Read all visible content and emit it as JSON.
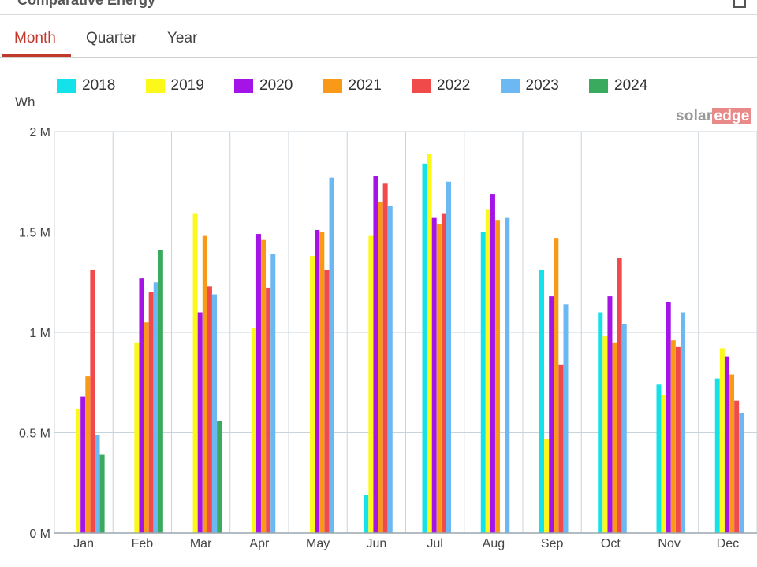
{
  "header": {
    "title": "Comparative Energy"
  },
  "tabs": [
    {
      "label": "Month",
      "active": true
    },
    {
      "label": "Quarter",
      "active": false
    },
    {
      "label": "Year",
      "active": false
    }
  ],
  "brand": {
    "part1": "solar",
    "part2": "edge"
  },
  "colors": {
    "active_tab": "#c0392b",
    "grid": "#c8d4dc"
  },
  "chart_data": {
    "type": "bar",
    "title": "",
    "xlabel": "",
    "ylabel": "Wh",
    "ylim": [
      0,
      2000000
    ],
    "y_ticks": [
      {
        "value": 0,
        "label": "0 M"
      },
      {
        "value": 500000,
        "label": "0.5 M"
      },
      {
        "value": 1000000,
        "label": "1 M"
      },
      {
        "value": 1500000,
        "label": "1.5 M"
      },
      {
        "value": 2000000,
        "label": "2 M"
      }
    ],
    "grid": true,
    "legend_position": "top",
    "categories": [
      "Jan",
      "Feb",
      "Mar",
      "Apr",
      "May",
      "Jun",
      "Jul",
      "Aug",
      "Sep",
      "Oct",
      "Nov",
      "Dec"
    ],
    "series": [
      {
        "name": "2018",
        "color": "#14e2ea",
        "values": [
          null,
          null,
          null,
          null,
          null,
          190000,
          1840000,
          1500000,
          1310000,
          1100000,
          740000,
          770000
        ]
      },
      {
        "name": "2019",
        "color": "#fbf81a",
        "values": [
          620000,
          950000,
          1590000,
          1020000,
          1380000,
          1480000,
          1890000,
          1610000,
          470000,
          980000,
          690000,
          920000
        ]
      },
      {
        "name": "2020",
        "color": "#a514e6",
        "values": [
          680000,
          1270000,
          1100000,
          1490000,
          1510000,
          1780000,
          1570000,
          1690000,
          1180000,
          1180000,
          1150000,
          880000
        ]
      },
      {
        "name": "2021",
        "color": "#f89a18",
        "values": [
          780000,
          1050000,
          1480000,
          1460000,
          1500000,
          1650000,
          1540000,
          1560000,
          1470000,
          950000,
          960000,
          790000
        ]
      },
      {
        "name": "2022",
        "color": "#f04a4a",
        "values": [
          1310000,
          1200000,
          1230000,
          1220000,
          1310000,
          1740000,
          1590000,
          null,
          840000,
          1370000,
          930000,
          660000
        ]
      },
      {
        "name": "2023",
        "color": "#6cb8f2",
        "values": [
          490000,
          1250000,
          1190000,
          1390000,
          1770000,
          1630000,
          1750000,
          1570000,
          1140000,
          1040000,
          1100000,
          600000
        ]
      },
      {
        "name": "2024",
        "color": "#3aaa5e",
        "values": [
          390000,
          1410000,
          560000,
          null,
          null,
          null,
          null,
          null,
          null,
          null,
          null,
          null
        ]
      }
    ]
  }
}
